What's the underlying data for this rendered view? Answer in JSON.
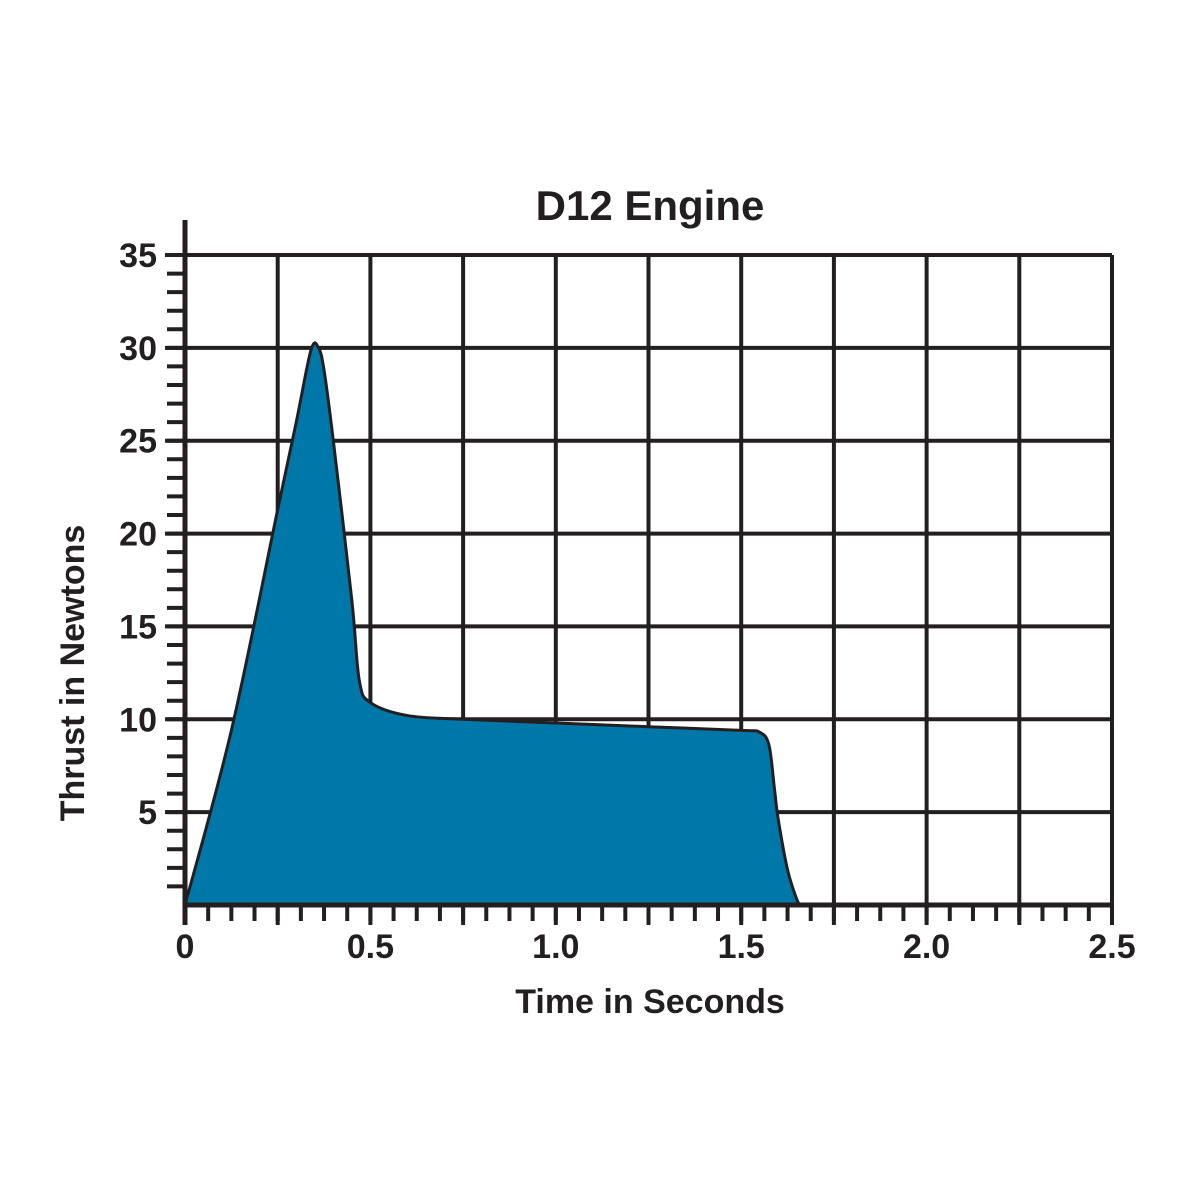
{
  "chart_data": {
    "type": "area",
    "title": "D12 Engine",
    "xlabel": "Time in Seconds",
    "ylabel": "Thrust in Newtons",
    "xlim": [
      0,
      2.5
    ],
    "ylim": [
      0,
      35
    ],
    "x_ticks": [
      {
        "value": 0,
        "label": "0"
      },
      {
        "value": 0.5,
        "label": "0.5"
      },
      {
        "value": 1.0,
        "label": "1.0"
      },
      {
        "value": 1.5,
        "label": "1.5"
      },
      {
        "value": 2.0,
        "label": "2.0"
      },
      {
        "value": 2.5,
        "label": "2.5"
      }
    ],
    "y_ticks": [
      {
        "value": 5,
        "label": "5"
      },
      {
        "value": 10,
        "label": "10"
      },
      {
        "value": 15,
        "label": "15"
      },
      {
        "value": 20,
        "label": "20"
      },
      {
        "value": 25,
        "label": "25"
      },
      {
        "value": 30,
        "label": "30"
      },
      {
        "value": 35,
        "label": "35"
      }
    ],
    "x_grid_step": 0.25,
    "y_grid_step": 5,
    "x_minor_step": 0.0625,
    "y_minor_step": 1,
    "grid": true,
    "colors": {
      "fill": "#0077a9",
      "line": "#231f20"
    },
    "series": [
      {
        "x": [
          0,
          0.125,
          0.25,
          0.3,
          0.34,
          0.36,
          0.375,
          0.4,
          0.45,
          0.47,
          0.5,
          0.6,
          0.75,
          1.0,
          1.25,
          1.5,
          1.55,
          1.575,
          1.59,
          1.6,
          1.625,
          1.65,
          1.66
        ],
        "y": [
          0,
          9.4,
          21.3,
          26,
          29.9,
          30,
          28.8,
          25,
          16.4,
          12.1,
          10.9,
          10.2,
          10,
          9.8,
          9.6,
          9.4,
          9.3,
          8.6,
          6.2,
          4.6,
          1.9,
          0.3,
          0
        ]
      }
    ]
  }
}
